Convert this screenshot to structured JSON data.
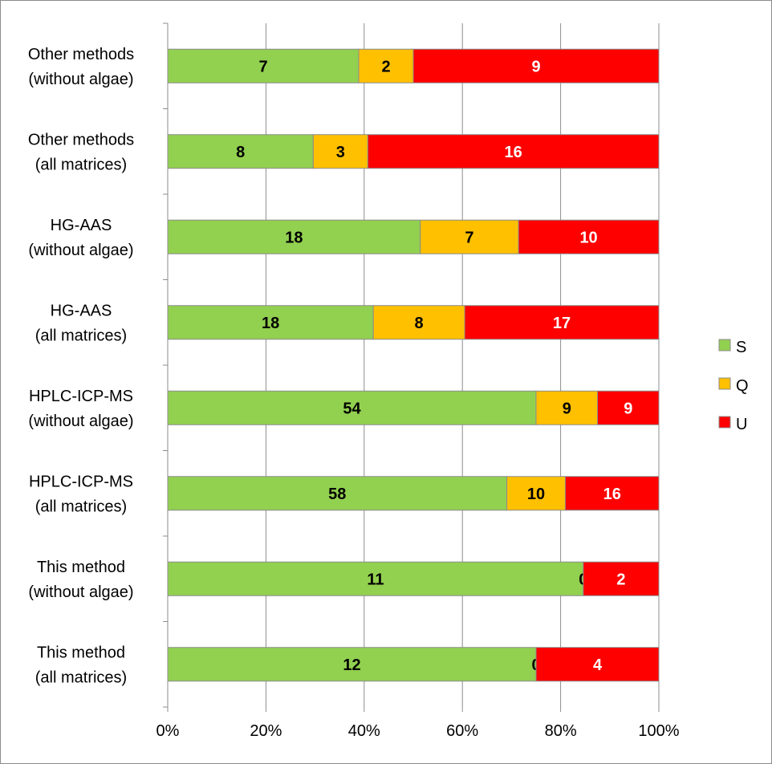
{
  "chart_data": {
    "type": "bar",
    "orientation": "horizontal",
    "stacked": "percent",
    "categories": [
      [
        "Other methods",
        "(without algae)"
      ],
      [
        "Other methods",
        "(all matrices)"
      ],
      [
        "HG-AAS",
        "(without algae)"
      ],
      [
        "HG-AAS",
        "(all matrices)"
      ],
      [
        "HPLC-ICP-MS",
        "(without algae)"
      ],
      [
        "HPLC-ICP-MS",
        "(all matrices)"
      ],
      [
        "This method",
        "(without algae)"
      ],
      [
        "This method",
        "(all matrices)"
      ]
    ],
    "series": [
      {
        "name": "S",
        "color": "#92D050",
        "label_color": "#000000",
        "values": [
          7,
          8,
          18,
          18,
          54,
          58,
          11,
          12
        ]
      },
      {
        "name": "Q",
        "color": "#FFC000",
        "label_color": "#000000",
        "values": [
          2,
          3,
          7,
          8,
          9,
          10,
          0,
          0
        ]
      },
      {
        "name": "U",
        "color": "#FF0000",
        "label_color": "#FFFFFF",
        "values": [
          9,
          16,
          10,
          17,
          9,
          16,
          2,
          4
        ]
      }
    ],
    "xlim": [
      0,
      100
    ],
    "x_ticks": [
      "0%",
      "20%",
      "40%",
      "60%",
      "80%",
      "100%"
    ],
    "grid": true,
    "legend": "right",
    "title": "",
    "xlabel": "",
    "ylabel": ""
  }
}
